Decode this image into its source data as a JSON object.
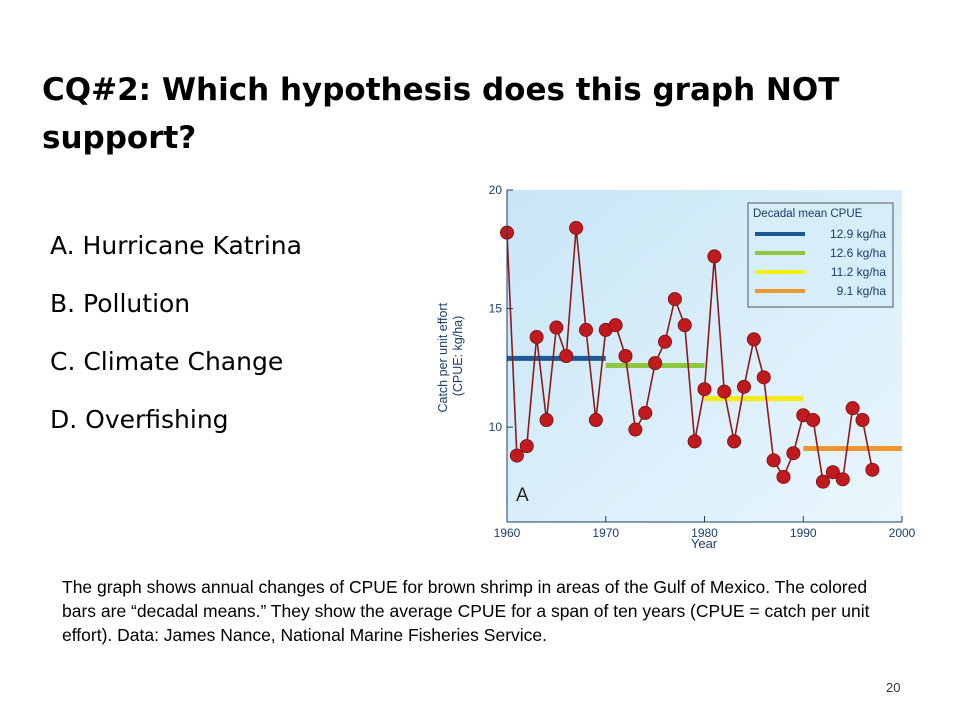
{
  "slide": {
    "title": "CQ#2: Which hypothesis does this graph NOT support?",
    "options": [
      "A.  Hurricane Katrina",
      "B.  Pollution",
      "C.  Climate Change",
      "D.  Overfishing"
    ],
    "caption": "The graph shows annual changes of CPUE for brown shrimp in areas of the Gulf of Mexico. The colored bars are “decadal means.” They show the average CPUE for a span of ten years (CPUE = catch per unit effort).   Data: James Nance, National Marine Fisheries Service.",
    "page_number": "20"
  },
  "chart_data": {
    "type": "line",
    "xlabel": "Year",
    "ylabel": "Catch per unit effort (CPUE: kg/ha)",
    "panel_label": "A",
    "xlim": [
      1960,
      2000
    ],
    "ylim": [
      6,
      20
    ],
    "x_ticks": [
      1960,
      1970,
      1980,
      1990,
      2000
    ],
    "y_ticks": [
      10,
      15,
      20
    ],
    "grid": false,
    "series": [
      {
        "x": [
          1960,
          1961,
          1962,
          1963,
          1964,
          1965,
          1966,
          1967,
          1968,
          1969,
          1970,
          1971,
          1972,
          1973,
          1974,
          1975,
          1976,
          1977,
          1978,
          1979,
          1980,
          1981,
          1982,
          1983,
          1984,
          1985,
          1986,
          1987,
          1988,
          1989,
          1990,
          1991,
          1992,
          1993,
          1994,
          1995,
          1996,
          1997
        ],
        "y": [
          18.2,
          8.8,
          9.2,
          13.8,
          10.3,
          14.2,
          13.0,
          18.4,
          14.1,
          10.3,
          14.1,
          14.3,
          13.0,
          9.9,
          10.6,
          12.7,
          13.6,
          15.4,
          14.3,
          9.4,
          11.6,
          17.2,
          11.5,
          9.4,
          11.7,
          13.7,
          12.1,
          8.6,
          7.9,
          8.9,
          10.5,
          10.3,
          7.7,
          8.1,
          7.8,
          10.8,
          10.3,
          8.2
        ],
        "color": "#c0191e"
      }
    ],
    "decadal_means": {
      "legend_title": "Decadal mean CPUE",
      "legend_position": "top-right",
      "items": [
        {
          "label": "12.9 kg/ha",
          "value": 12.9,
          "from": 1960,
          "to": 1970,
          "color": "#1a5a96"
        },
        {
          "label": "12.6 kg/ha",
          "value": 12.6,
          "from": 1970,
          "to": 1980,
          "color": "#8dc63f"
        },
        {
          "label": "11.2 kg/ha",
          "value": 11.2,
          "from": 1980,
          "to": 1990,
          "color": "#f5ea14"
        },
        {
          "label": "9.1 kg/ha",
          "value": 9.1,
          "from": 1990,
          "to": 2000,
          "color": "#f0962e"
        }
      ]
    }
  }
}
